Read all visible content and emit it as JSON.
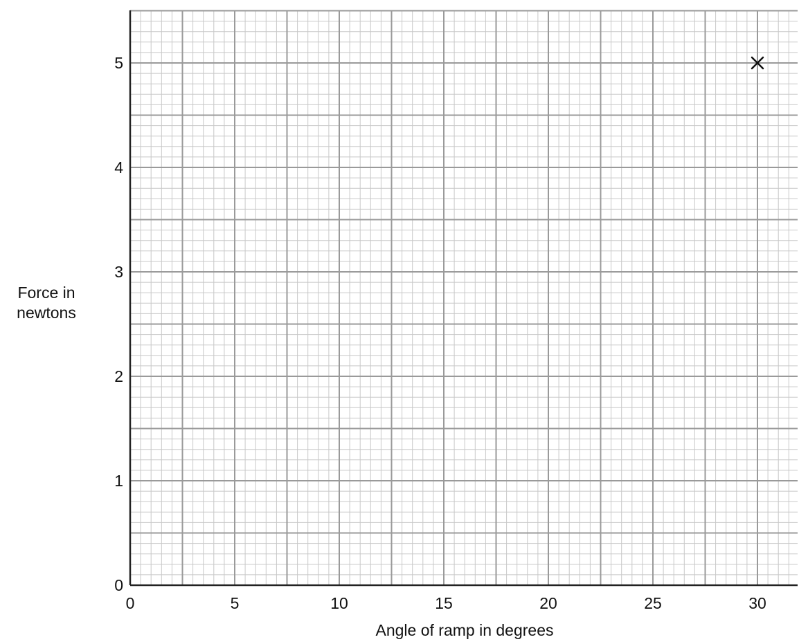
{
  "chart_data": {
    "type": "scatter",
    "xlabel": "Angle of ramp in degrees",
    "ylabel_lines": [
      "Force in",
      "newtons"
    ],
    "xlim": [
      0,
      32
    ],
    "ylim": [
      0,
      5.5
    ],
    "x_ticks": [
      0,
      5,
      10,
      15,
      20,
      25,
      30
    ],
    "y_ticks": [
      0,
      1,
      2,
      3,
      4,
      5
    ],
    "grid": true,
    "grid_style": "graph paper (fine minor squares, bolder major lines)",
    "colors": {
      "minor_grid": "#c8c8c8",
      "major_grid": "#9a9a9a",
      "axis": "#222222",
      "marker": "#111111"
    },
    "series": [
      {
        "marker": "x",
        "points": [
          {
            "x": 30,
            "y": 5
          }
        ]
      }
    ]
  }
}
